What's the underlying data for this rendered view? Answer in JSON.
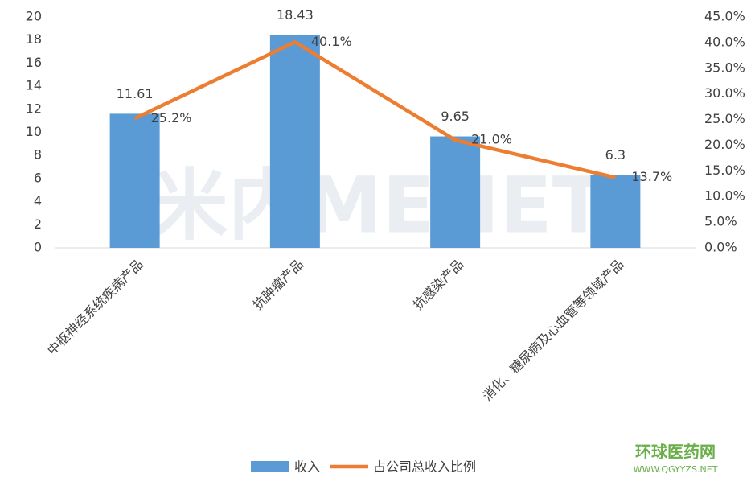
{
  "chart_data": {
    "type": "bar",
    "categories": [
      "中枢神经系统疾病产品",
      "抗肿瘤产品",
      "抗感染产品",
      "消化、糖尿病及心血管等领域产品"
    ],
    "series": [
      {
        "name": "收入",
        "type": "bar",
        "color": "#5B9BD5",
        "values": [
          11.61,
          18.43,
          9.65,
          6.3
        ]
      },
      {
        "name": "占公司总收入比例",
        "type": "line",
        "axis": "y2",
        "color": "#ED7D31",
        "values": [
          25.2,
          40.1,
          21.0,
          13.7
        ],
        "value_labels": [
          "25.2%",
          "40.1%",
          "21.0%",
          "13.7%"
        ]
      }
    ],
    "ylim": [
      0,
      20
    ],
    "yticks": [
      0,
      2,
      4,
      6,
      8,
      10,
      12,
      14,
      16,
      18,
      20
    ],
    "y2lim": [
      0,
      45
    ],
    "y2ticks": [
      {
        "value": 0,
        "label": "0.0%"
      },
      {
        "value": 5,
        "label": "5.0%"
      },
      {
        "value": 10,
        "label": "10.0%"
      },
      {
        "value": 15,
        "label": "15.0%"
      },
      {
        "value": 20,
        "label": "20.0%"
      },
      {
        "value": 25,
        "label": "25.0%"
      },
      {
        "value": 30,
        "label": "30.0%"
      },
      {
        "value": 35,
        "label": "35.0%"
      },
      {
        "value": 40,
        "label": "40.0%"
      },
      {
        "value": 45,
        "label": "45.0%"
      }
    ],
    "grid": false,
    "legend": "bottom",
    "watermark": "米内MENET",
    "logo": {
      "name": "环球医药网",
      "url": "WWW.QGYYZS.NET"
    }
  }
}
